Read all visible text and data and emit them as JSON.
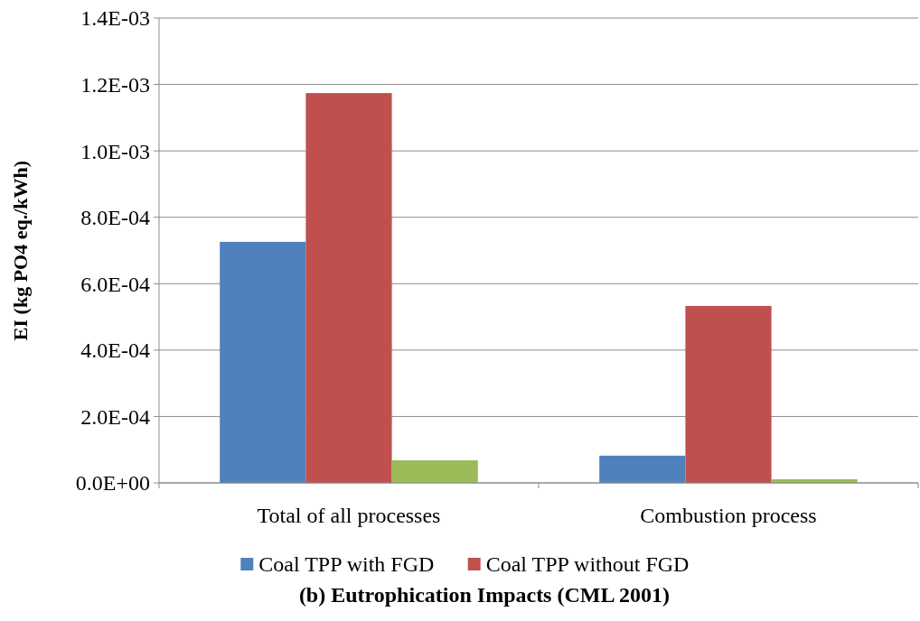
{
  "chart_data": {
    "type": "bar",
    "title": "(b) Eutrophication Impacts (CML 2001)",
    "ylabel": "EI (kg PO4 eq./kWh)",
    "categories": [
      "Total of all processes",
      "Combustion process"
    ],
    "series": [
      {
        "name": "Coal TPP with FGD",
        "color": "#4f81bd",
        "values": [
          0.000726,
          8.2e-05
        ]
      },
      {
        "name": "Coal TPP without FGD",
        "color": "#c0504d",
        "values": [
          0.001174,
          0.000533
        ]
      },
      {
        "color": "#9bbb59",
        "values": [
          6.8e-05,
          1.1e-05
        ]
      }
    ],
    "ylim": [
      0,
      0.0014
    ],
    "yticks": [
      {
        "value": 0,
        "label": "0.0E+00"
      },
      {
        "value": 0.0002,
        "label": "2.0E-04"
      },
      {
        "value": 0.0004,
        "label": "4.0E-04"
      },
      {
        "value": 0.0006,
        "label": "6.0E-04"
      },
      {
        "value": 0.0008,
        "label": "8.0E-04"
      },
      {
        "value": 0.001,
        "label": "1.0E-03"
      },
      {
        "value": 0.0012,
        "label": "1.2E-03"
      },
      {
        "value": 0.0014,
        "label": "1.4E-03"
      }
    ],
    "grid": "y",
    "legend": "bottom"
  }
}
